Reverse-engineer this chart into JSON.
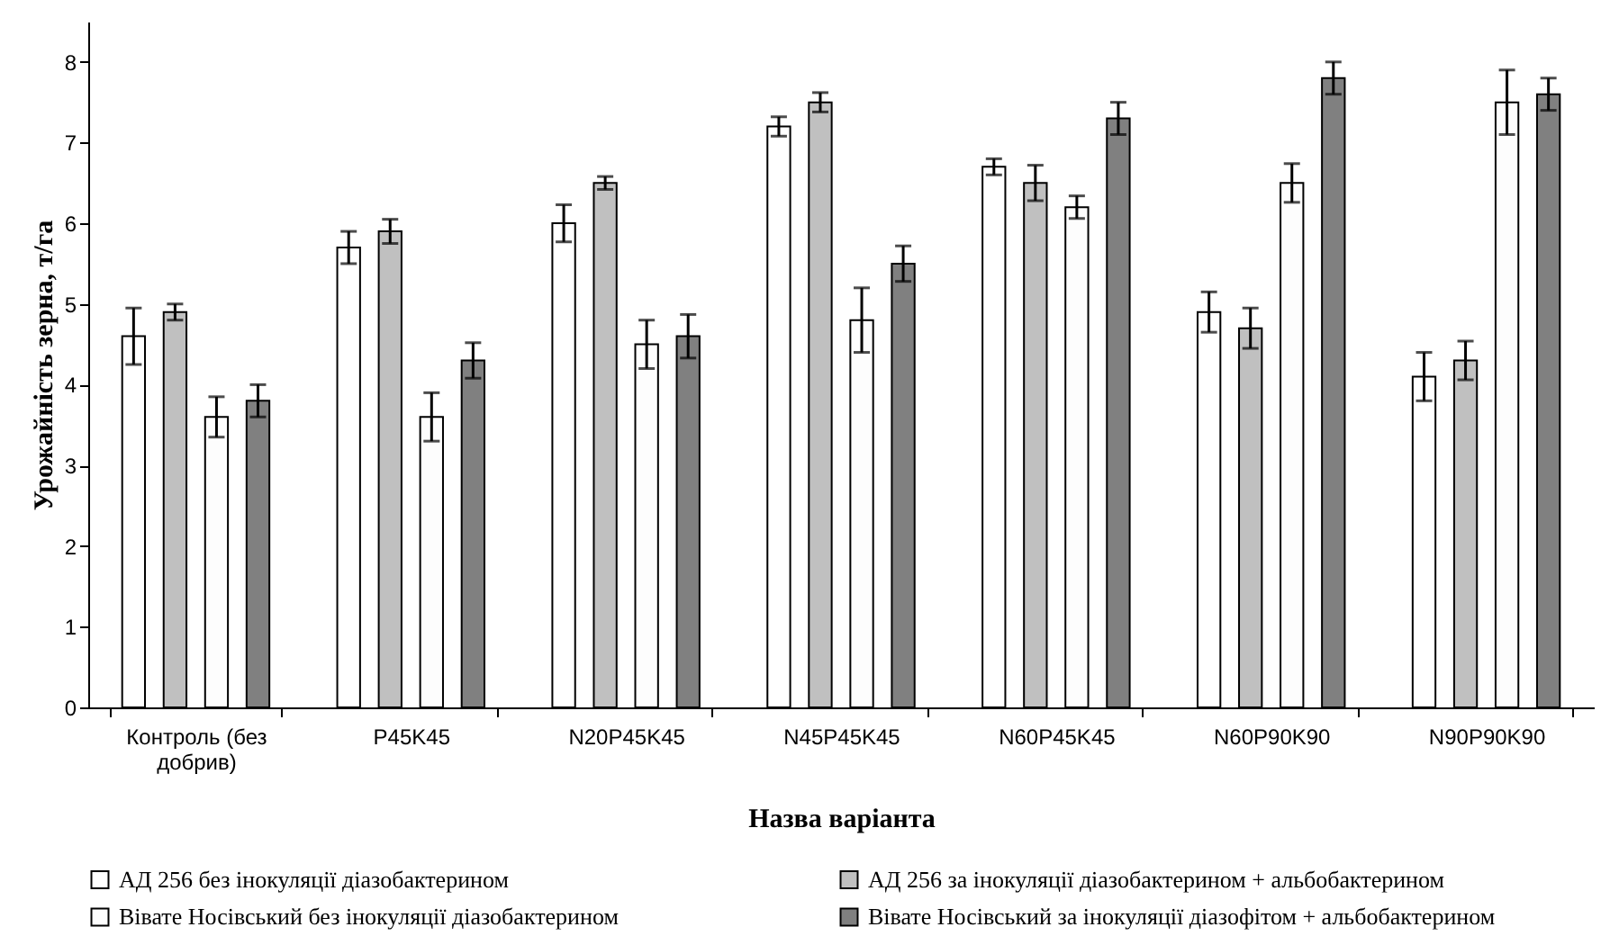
{
  "chart_data": {
    "type": "bar",
    "xlabel": "Назва варіанта",
    "ylabel": "Урожайність зерна, т/га",
    "categories": [
      "Контроль (без добрив)",
      "P45K45",
      "N20P45K45",
      "N45P45K45",
      "N60P45K45",
      "N60P90K90",
      "N90P90K90"
    ],
    "ylim": [
      0,
      8.5
    ],
    "yticks": [
      0,
      1,
      2,
      3,
      4,
      5,
      6,
      7,
      8
    ],
    "grid": false,
    "legend": "bottom",
    "series": [
      {
        "name": "АД 256 без інокуляції діазобактерином",
        "color": "#ffffff",
        "values": [
          4.6,
          5.7,
          6.0,
          7.2,
          6.7,
          4.9,
          4.1
        ],
        "errors": [
          0.35,
          0.2,
          0.23,
          0.12,
          0.1,
          0.25,
          0.3
        ]
      },
      {
        "name": "АД 256 за інокуляції діазобактерином + альбобактерином",
        "color": "#c0c0c0",
        "values": [
          4.9,
          5.9,
          6.5,
          7.5,
          6.5,
          4.7,
          4.3
        ],
        "errors": [
          0.1,
          0.15,
          0.08,
          0.12,
          0.22,
          0.25,
          0.24
        ]
      },
      {
        "name": "Вівате Носівський без інокуляції діазобактерином",
        "color": "#fdfdfd",
        "values": [
          3.6,
          3.6,
          4.5,
          4.8,
          6.2,
          6.5,
          7.5
        ],
        "errors": [
          0.25,
          0.3,
          0.3,
          0.4,
          0.14,
          0.24,
          0.4
        ]
      },
      {
        "name": "Вівате Носівський за інокуляції діазофітом + альбобактерином",
        "color": "#808080",
        "values": [
          3.8,
          4.3,
          4.6,
          5.5,
          7.3,
          7.8,
          7.6
        ],
        "errors": [
          0.2,
          0.22,
          0.27,
          0.22,
          0.2,
          0.2,
          0.2
        ]
      }
    ]
  }
}
